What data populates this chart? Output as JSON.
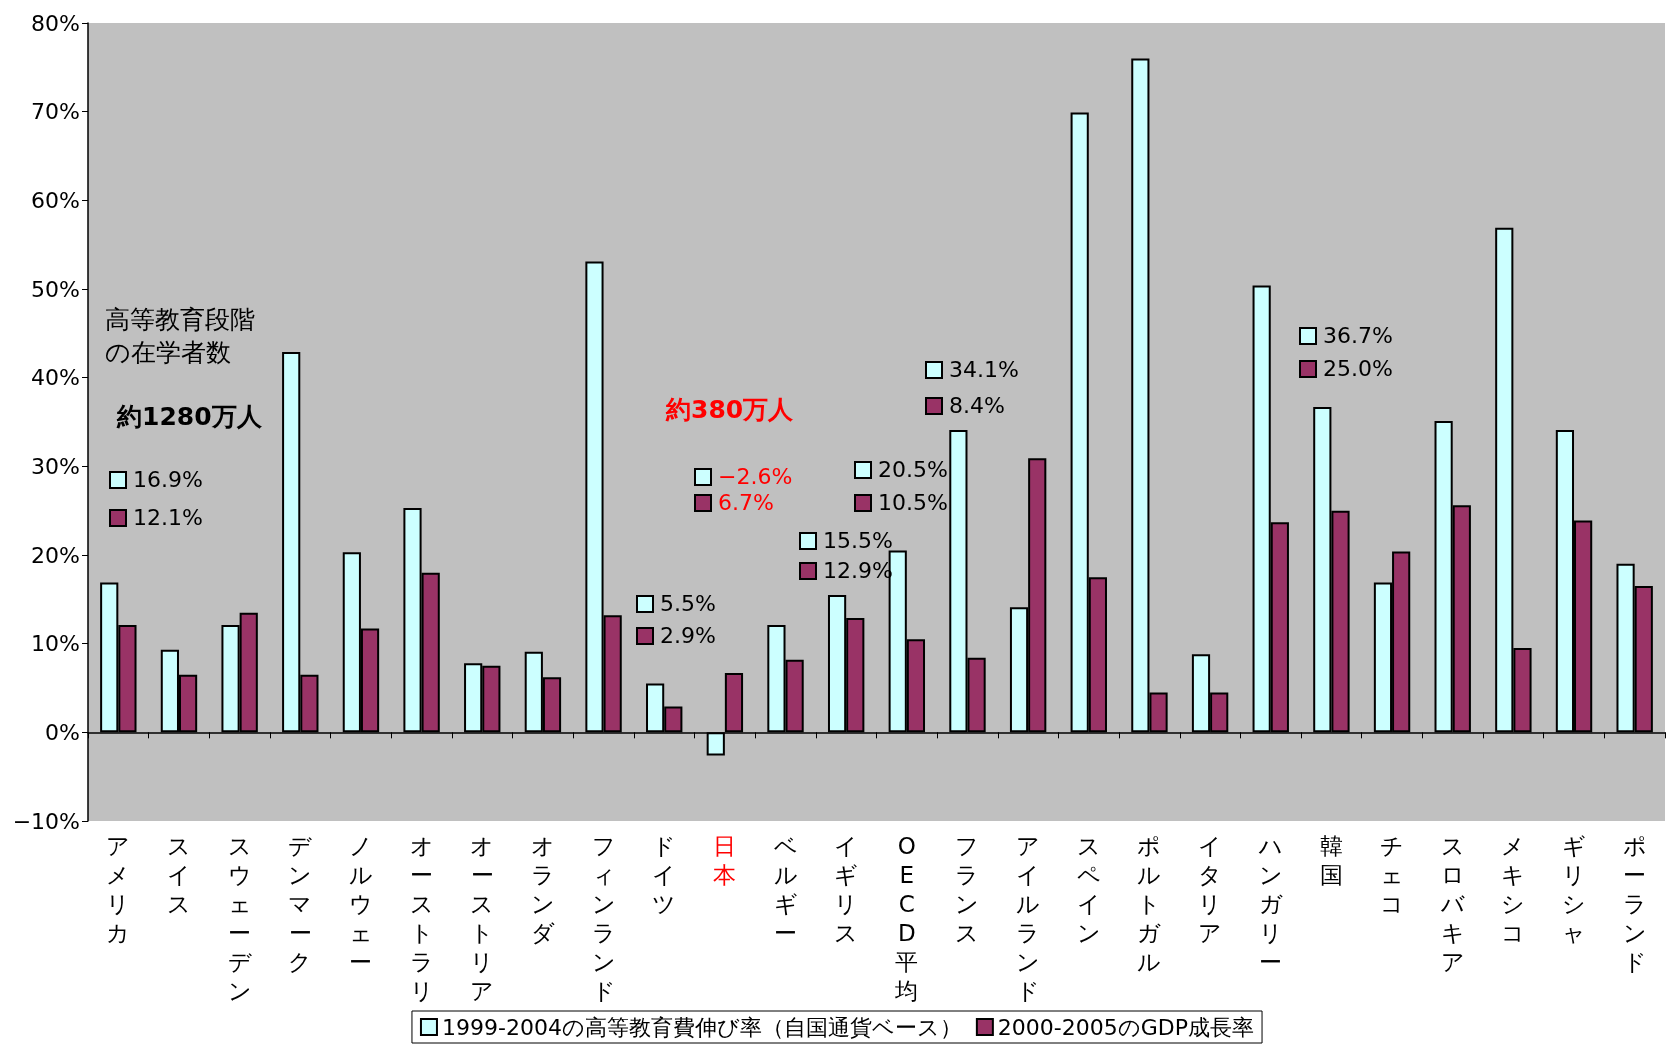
{
  "chart_data": {
    "type": "bar",
    "categories": [
      "アメリカ",
      "スイス",
      "スウェーデン",
      "デンマーク",
      "ノルウェー",
      "オーストラリア",
      "オーストリア",
      "オランダ",
      "フィンランド",
      "ドイツ",
      "日本",
      "ベルギー",
      "イギリス",
      "OECD平均",
      "フランス",
      "アイルランド",
      "スペイン",
      "ポルトガル",
      "イタリア",
      "ハンガリー",
      "韓国",
      "チェコ",
      "スロバキア",
      "メキシコ",
      "ギリシャ",
      "ポーランド"
    ],
    "series": [
      {
        "name": "1999-2004の高等教育費伸び率（自国通貨ベース）",
        "color": "#ccffff",
        "values": [
          16.9,
          9.3,
          12.1,
          42.9,
          20.3,
          25.3,
          7.8,
          9.1,
          53.1,
          5.5,
          -2.6,
          12.1,
          15.5,
          20.5,
          34.1,
          14.1,
          69.9,
          76.0,
          8.8,
          50.4,
          36.7,
          16.9,
          35.1,
          56.9,
          34.1,
          19.0
        ]
      },
      {
        "name": "2000-2005のGDP成長率",
        "color": "#993366",
        "values": [
          12.1,
          6.5,
          13.5,
          6.5,
          11.7,
          18.0,
          7.5,
          6.2,
          13.2,
          2.9,
          6.7,
          8.2,
          12.9,
          10.5,
          8.4,
          30.9,
          17.5,
          4.5,
          4.5,
          23.7,
          25.0,
          20.4,
          25.6,
          9.5,
          23.9,
          16.5
        ]
      }
    ],
    "ylim": [
      -10,
      80
    ],
    "yticks": [
      {
        "value": -10,
        "label": "−10%"
      },
      {
        "value": 0,
        "label": "0%"
      },
      {
        "value": 10,
        "label": "10%"
      },
      {
        "value": 20,
        "label": "20%"
      },
      {
        "value": 30,
        "label": "30%"
      },
      {
        "value": 40,
        "label": "40%"
      },
      {
        "value": 50,
        "label": "50%"
      },
      {
        "value": 60,
        "label": "60%"
      },
      {
        "value": 70,
        "label": "70%"
      },
      {
        "value": 80,
        "label": "80%"
      }
    ],
    "legend": "bottom",
    "annotations": [
      "高等教育段階の在学者数",
      "約1280万人",
      "約380万人",
      "16.9%",
      "12.1%",
      "5.5%",
      "2.9%",
      "−2.6%",
      "6.7%",
      "15.5%",
      "12.9%",
      "20.5%",
      "10.5%",
      "34.1%",
      "8.4%",
      "36.7%",
      "25.0%"
    ]
  }
}
